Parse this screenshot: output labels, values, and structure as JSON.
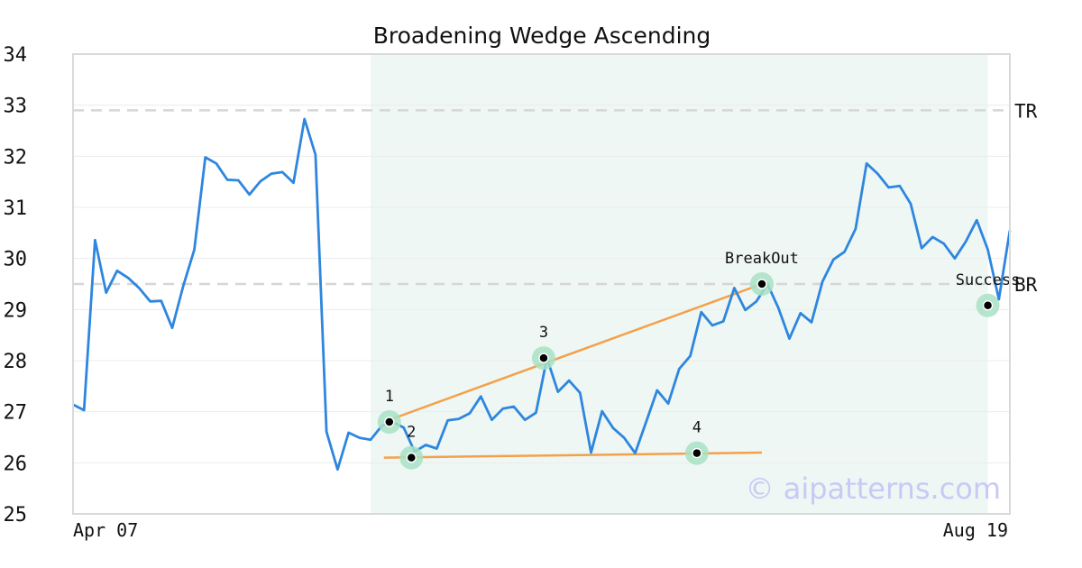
{
  "chart_data": {
    "type": "line",
    "title": "Broadening Wedge Ascending",
    "ylim": [
      25,
      34
    ],
    "yticks": [
      25,
      26,
      27,
      28,
      29,
      30,
      31,
      32,
      33,
      34
    ],
    "x_start_label": "Apr 07",
    "x_end_label": "Aug 19",
    "grid": true,
    "watermark": "© aipatterns.com",
    "colors": {
      "price": "#2e86de",
      "trendline": "#f4a04a",
      "highlight": "#e3f2ec",
      "marker_ring": "#a8e2c4",
      "level_line": "#d6d6d6"
    },
    "series": [
      {
        "values": [
          27.14,
          27.03,
          30.36,
          29.33,
          29.76,
          29.62,
          29.42,
          29.16,
          29.17,
          28.64,
          29.46,
          30.17,
          31.98,
          31.86,
          31.54,
          31.53,
          31.25,
          31.51,
          31.66,
          31.69,
          31.48,
          32.73,
          32.03,
          26.61,
          25.87,
          26.59,
          26.49,
          26.45,
          26.72,
          26.8,
          26.69,
          26.22,
          26.35,
          26.28,
          26.83,
          26.86,
          26.97,
          27.3,
          26.84,
          27.06,
          27.1,
          26.84,
          26.98,
          28.05,
          27.39,
          27.61,
          27.37,
          26.2,
          27.01,
          26.68,
          26.49,
          26.19,
          26.8,
          27.42,
          27.16,
          27.84,
          28.09,
          28.95,
          28.69,
          28.77,
          29.42,
          28.99,
          29.16,
          29.5,
          29.03,
          28.43,
          28.93,
          28.75,
          29.55,
          29.98,
          30.13,
          30.58,
          31.86,
          31.66,
          31.39,
          31.42,
          31.07,
          30.2,
          30.42,
          30.29,
          30.0,
          30.33,
          30.75,
          30.17,
          29.2,
          30.55
        ]
      }
    ],
    "highlight_range": [
      27,
      83
    ],
    "levels": [
      {
        "label": "TR",
        "y": 32.9
      },
      {
        "label": "BR",
        "y": 29.5
      }
    ],
    "trendlines": [
      {
        "x1": 28.2,
        "y1": 26.8,
        "x2": 62.5,
        "y2": 29.5
      },
      {
        "x1": 28.2,
        "y1": 26.1,
        "x2": 62.5,
        "y2": 26.2
      }
    ],
    "points": [
      {
        "label": "1",
        "x": 28.7,
        "y": 26.8,
        "label_pos": "above"
      },
      {
        "label": "2",
        "x": 30.7,
        "y": 26.1,
        "label_pos": "above"
      },
      {
        "label": "3",
        "x": 42.7,
        "y": 28.05,
        "label_pos": "above"
      },
      {
        "label": "4",
        "x": 56.6,
        "y": 26.19,
        "label_pos": "above"
      },
      {
        "label": "BreakOut",
        "x": 62.5,
        "y": 29.5,
        "label_pos": "above"
      },
      {
        "label": "Success",
        "x": 83,
        "y": 29.08,
        "label_pos": "above"
      }
    ]
  }
}
